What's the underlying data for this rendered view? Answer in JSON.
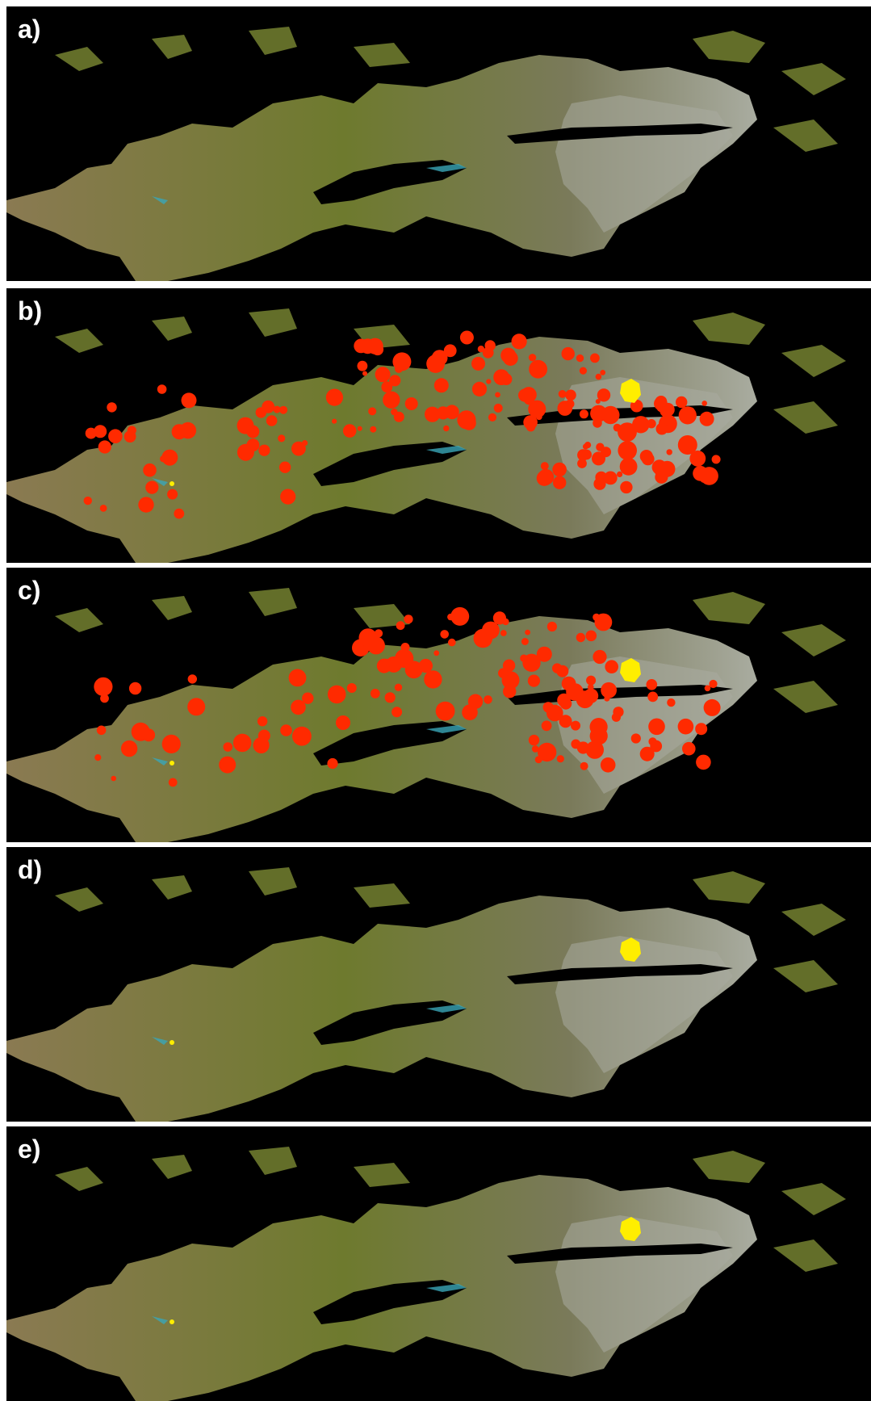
{
  "figure": {
    "panels": [
      {
        "label": "a)",
        "has_red_detections": false,
        "red_density": 0.0,
        "has_yellow_patch": false
      },
      {
        "label": "b)",
        "has_red_detections": true,
        "red_density": 1.0,
        "has_yellow_patch": true
      },
      {
        "label": "c)",
        "has_red_detections": true,
        "red_density": 0.8,
        "has_yellow_patch": true
      },
      {
        "label": "d)",
        "has_red_detections": false,
        "red_density": 0.0,
        "has_yellow_patch": true
      },
      {
        "label": "e)",
        "has_red_detections": false,
        "red_density": 0.0,
        "has_yellow_patch": true
      }
    ],
    "colors": {
      "background": "#000000",
      "vegetation": "#6e7a2e",
      "terrain": "#8a7a52",
      "snow": "#a9aca0",
      "detection_red": "#ff2a00",
      "yellow_patch": "#ffee00",
      "water": "#3aa6b8"
    }
  }
}
